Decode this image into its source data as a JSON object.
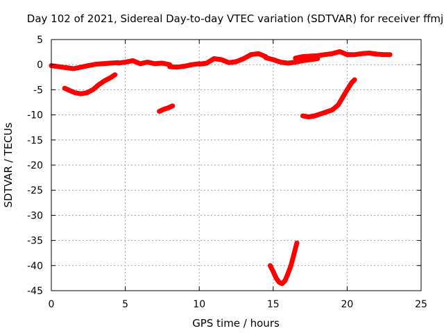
{
  "chart_data": {
    "type": "line",
    "title": "Day 102 of 2021, Sidereal Day-to-day VTEC variation (SDTVAR) for receiver ffmj",
    "xlabel": "GPS time / hours",
    "ylabel": "SDTVAR / TECUs",
    "xlim": [
      0,
      25
    ],
    "ylim": [
      -45,
      5
    ],
    "x_ticks": [
      "0",
      "5",
      "10",
      "15",
      "20",
      "25"
    ],
    "y_ticks": [
      "5",
      "0",
      "-5",
      "-10",
      "-15",
      "-20",
      "-25",
      "-30",
      "-35",
      "-40",
      "-45"
    ],
    "grid": true,
    "color": "#ff0000",
    "series": [
      {
        "x": [
          0,
          0.5,
          1,
          1.5,
          2,
          2.5,
          3,
          3.5,
          4,
          4.5
        ],
        "y": [
          -0.2,
          -0.4,
          -0.6,
          -0.8,
          -0.5,
          -0.2,
          0.1,
          0.2,
          0.3,
          0.4
        ]
      },
      {
        "x": [
          4.5,
          5,
          5.5,
          6,
          6.5,
          7,
          7.5,
          8
        ],
        "y": [
          0.3,
          0.5,
          0.8,
          0.2,
          0.5,
          0.2,
          0.3,
          0.0
        ]
      },
      {
        "x": [
          8,
          8.5,
          9,
          9.5,
          10
        ],
        "y": [
          -0.4,
          -0.5,
          -0.3,
          0.0,
          0.2
        ]
      },
      {
        "x": [
          10,
          10.5,
          11,
          11.5,
          12,
          12.5,
          13,
          13.5,
          14,
          14.5
        ],
        "y": [
          0.1,
          0.3,
          1.2,
          1.0,
          0.4,
          0.6,
          1.2,
          2.0,
          2.2,
          1.6
        ]
      },
      {
        "x": [
          14.5,
          15,
          15.5,
          16,
          16.5,
          17,
          17.5,
          18
        ],
        "y": [
          1.4,
          1.0,
          0.5,
          0.3,
          0.5,
          0.8,
          1.0,
          1.2
        ]
      },
      {
        "x": [
          16.5,
          17,
          17.5,
          18,
          18.5,
          19,
          19.5,
          20,
          20.5,
          21,
          21.5,
          22,
          22.5,
          22.9
        ],
        "y": [
          1.3,
          1.6,
          1.7,
          1.8,
          2.0,
          2.2,
          2.6,
          2.0,
          2.0,
          2.2,
          2.3,
          2.1,
          2.0,
          2.0
        ]
      },
      {
        "x": [
          0.9,
          1.2,
          1.6,
          2.0,
          2.4,
          2.8,
          3.2,
          3.6,
          4.0,
          4.3
        ],
        "y": [
          -4.7,
          -5.1,
          -5.6,
          -5.8,
          -5.6,
          -5.0,
          -4.0,
          -3.2,
          -2.6,
          -2.0
        ]
      },
      {
        "x": [
          7.3,
          7.6,
          7.9,
          8.2
        ],
        "y": [
          -9.3,
          -8.9,
          -8.6,
          -8.2
        ]
      },
      {
        "x": [
          17.0,
          17.4,
          17.8,
          18.2,
          18.6,
          19.0,
          19.4,
          19.7,
          20.0,
          20.3,
          20.5
        ],
        "y": [
          -10.2,
          -10.4,
          -10.2,
          -9.8,
          -9.4,
          -9.0,
          -8.0,
          -6.5,
          -5.0,
          -3.6,
          -3.0
        ]
      },
      {
        "x": [
          14.8,
          15.0,
          15.2,
          15.4,
          15.6,
          15.8,
          16.0,
          16.2,
          16.4,
          16.6
        ],
        "y": [
          -40.0,
          -41.2,
          -42.5,
          -43.3,
          -43.6,
          -43.0,
          -41.6,
          -40.0,
          -37.8,
          -35.5
        ]
      }
    ]
  }
}
